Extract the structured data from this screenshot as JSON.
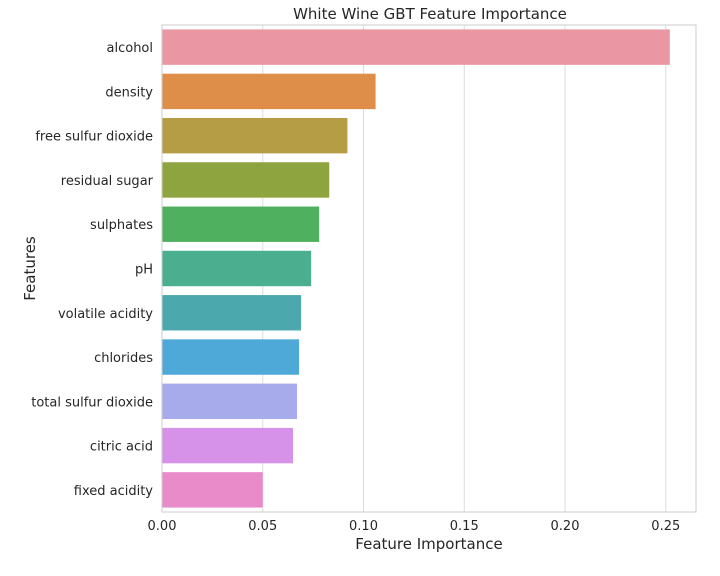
{
  "chart_data": {
    "type": "bar",
    "orientation": "horizontal",
    "title": "White Wine GBT Feature Importance",
    "xlabel": "Feature Importance",
    "ylabel": "Features",
    "xlim": [
      0,
      0.265
    ],
    "xticks": [
      "0.00",
      "0.05",
      "0.10",
      "0.15",
      "0.20",
      "0.25"
    ],
    "grid": true,
    "categories": [
      "alcohol",
      "density",
      "free sulfur dioxide",
      "residual sugar",
      "sulphates",
      "pH",
      "volatile acidity",
      "chlorides",
      "total sulfur dioxide",
      "citric acid",
      "fixed acidity"
    ],
    "values": [
      0.252,
      0.106,
      0.092,
      0.083,
      0.078,
      0.074,
      0.069,
      0.068,
      0.067,
      0.065,
      0.05
    ],
    "colors": [
      "#ea96a3",
      "#df8e4a",
      "#b59d46",
      "#8ea43f",
      "#4fb060",
      "#4baf8f",
      "#4ba9ae",
      "#4ea8d8",
      "#a7abec",
      "#d692e8",
      "#e98ac9"
    ]
  }
}
